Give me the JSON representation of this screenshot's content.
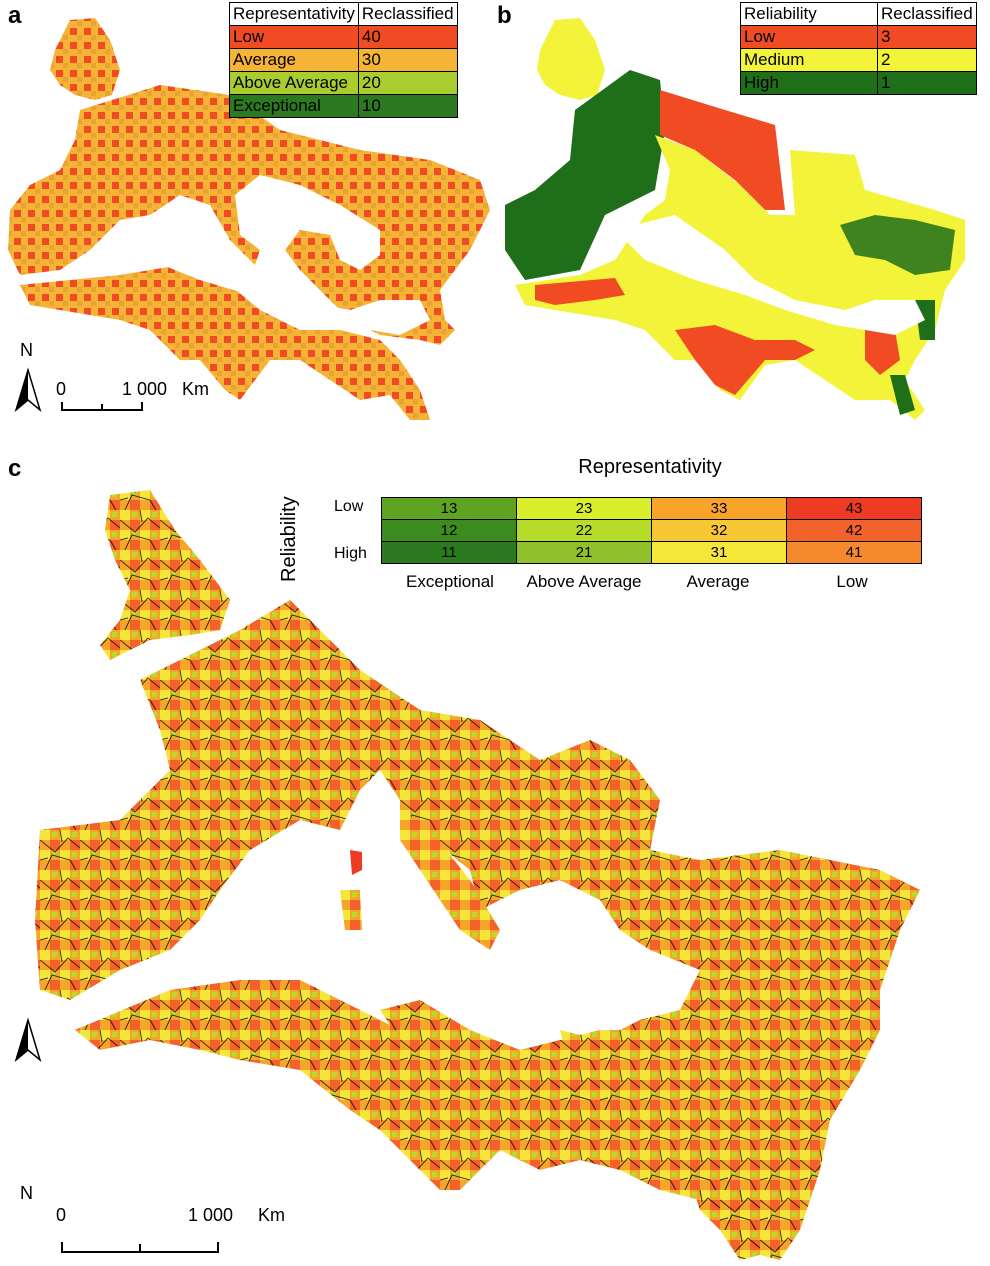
{
  "panel_a": {
    "letter": "a",
    "legend": {
      "headers": [
        "Representativity",
        "Reclassified"
      ],
      "rows": [
        {
          "label": "Low",
          "value": "40",
          "color": "#f04b23"
        },
        {
          "label": "Average",
          "value": "30",
          "color": "#f5b436"
        },
        {
          "label": "Above Average",
          "value": "20",
          "color": "#a9cd2f"
        },
        {
          "label": "Exceptional",
          "value": "10",
          "color": "#2b7a1f"
        }
      ]
    },
    "north": "N",
    "scale": {
      "zero": "0",
      "distance": "1 000",
      "unit": "Km"
    }
  },
  "panel_b": {
    "letter": "b",
    "legend": {
      "headers": [
        "Reliability",
        "Reclassified"
      ],
      "rows": [
        {
          "label": "Low",
          "value": "3",
          "color": "#f04b23"
        },
        {
          "label": "Medium",
          "value": "2",
          "color": "#f3f33a"
        },
        {
          "label": "High",
          "value": "1",
          "color": "#1f6e1a"
        }
      ]
    }
  },
  "panel_c": {
    "letter": "c",
    "legend": {
      "title": "Representativity",
      "axis_label": "Reliability",
      "row_labels": [
        "Low",
        "",
        "High"
      ],
      "columns": [
        "Exceptional",
        "Above Average",
        "Average",
        "Low"
      ],
      "cells": [
        [
          {
            "v": "13",
            "c": "#5ea321"
          },
          {
            "v": "23",
            "c": "#d9ee2d"
          },
          {
            "v": "33",
            "c": "#f6a42a"
          },
          {
            "v": "43",
            "c": "#ee3b24"
          }
        ],
        [
          {
            "v": "12",
            "c": "#3c8b1f"
          },
          {
            "v": "22",
            "c": "#b6dc2b"
          },
          {
            "v": "32",
            "c": "#f7c833"
          },
          {
            "v": "42",
            "c": "#f2622a"
          }
        ],
        [
          {
            "v": "11",
            "c": "#2b7a1f"
          },
          {
            "v": "21",
            "c": "#8fc12a"
          },
          {
            "v": "31",
            "c": "#f5e63a"
          },
          {
            "v": "41",
            "c": "#f6892e"
          }
        ]
      ]
    },
    "north": "N",
    "scale": {
      "zero": "0",
      "distance": "1 000",
      "unit": "Km"
    }
  }
}
